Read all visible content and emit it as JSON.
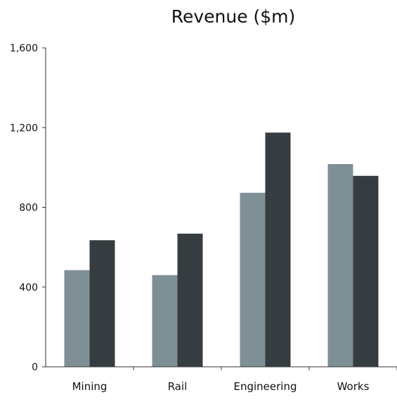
{
  "chart_data": {
    "type": "bar",
    "title": "Revenue ($m)",
    "xlabel": "",
    "ylabel": "",
    "categories": [
      "Mining",
      "Rail",
      "Engineering",
      "Works"
    ],
    "series": [
      {
        "values": [
          485,
          460,
          873,
          1017
        ],
        "color": "#7f8f96"
      },
      {
        "values": [
          635,
          668,
          1175,
          958
        ],
        "color": "#363d40"
      }
    ],
    "ylim": [
      0,
      1600
    ],
    "yticks": [
      0,
      400,
      800,
      1200,
      1600
    ],
    "ytick_labels": [
      "0",
      "400",
      "800",
      "1,200",
      "1,600"
    ],
    "grid": false,
    "legend": "none"
  }
}
